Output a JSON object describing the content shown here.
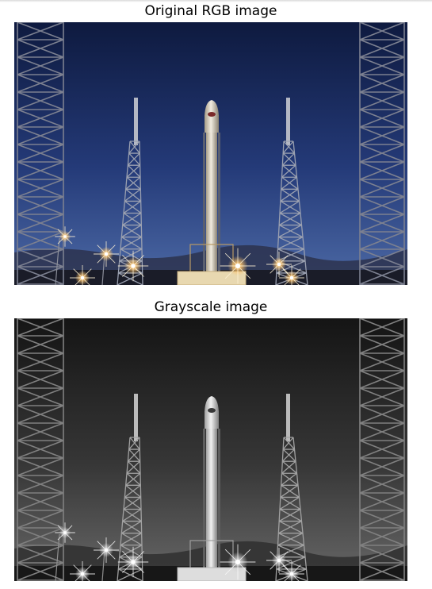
{
  "panels": [
    {
      "title": "Original RGB image",
      "image": "rocket-launchpad-night-color"
    },
    {
      "title": "Grayscale image",
      "image": "rocket-launchpad-night-grayscale"
    }
  ],
  "colors": {
    "sky_top": "#0e1a3f",
    "sky_mid": "#243a78",
    "sky_horizon": "#4d6aa6",
    "glow": "#ffc46b",
    "rocket": "#f1ece0",
    "tower": "#9aa0b0"
  }
}
